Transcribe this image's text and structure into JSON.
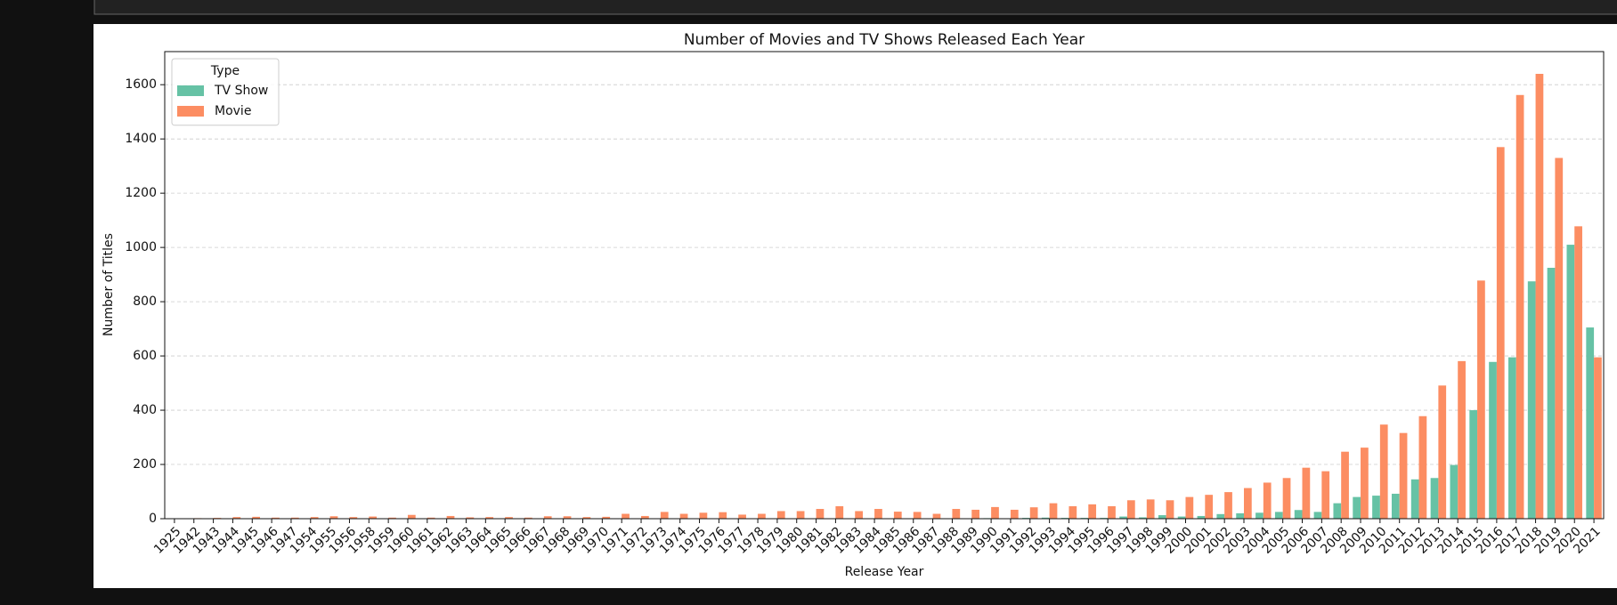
{
  "chart_data": {
    "type": "bar",
    "title": "Number of Movies and TV Shows Released Each Year",
    "xlabel": "Release Year",
    "ylabel": "Number of Titles",
    "legend_title": "Type",
    "legend": "upper left",
    "grid": true,
    "categories": [
      "1925",
      "1942",
      "1943",
      "1944",
      "1945",
      "1946",
      "1947",
      "1954",
      "1955",
      "1956",
      "1958",
      "1959",
      "1960",
      "1961",
      "1962",
      "1963",
      "1964",
      "1965",
      "1966",
      "1967",
      "1968",
      "1969",
      "1970",
      "1971",
      "1972",
      "1973",
      "1974",
      "1975",
      "1976",
      "1977",
      "1978",
      "1979",
      "1980",
      "1981",
      "1982",
      "1983",
      "1984",
      "1985",
      "1986",
      "1987",
      "1988",
      "1989",
      "1990",
      "1991",
      "1992",
      "1993",
      "1994",
      "1995",
      "1996",
      "1997",
      "1998",
      "1999",
      "2000",
      "2001",
      "2002",
      "2003",
      "2004",
      "2005",
      "2006",
      "2007",
      "2008",
      "2009",
      "2010",
      "2011",
      "2012",
      "2013",
      "2014",
      "2015",
      "2016",
      "2017",
      "2018",
      "2019",
      "2020",
      "2021"
    ],
    "series": [
      {
        "name": "TV Show",
        "color": "#66c2a5",
        "values": [
          1,
          0,
          0,
          0,
          1,
          1,
          0,
          0,
          0,
          0,
          0,
          0,
          0,
          0,
          0,
          1,
          0,
          0,
          0,
          0,
          0,
          0,
          0,
          0,
          0,
          0,
          0,
          0,
          0,
          0,
          0,
          0,
          0,
          0,
          0,
          0,
          0,
          0,
          1,
          1,
          1,
          1,
          2,
          1,
          3,
          4,
          3,
          3,
          3,
          8,
          5,
          13,
          8,
          10,
          17,
          20,
          22,
          25,
          32,
          25,
          57,
          80,
          85,
          92,
          145,
          150,
          198,
          400,
          578,
          595,
          875,
          925,
          1010,
          705
        ]
      },
      {
        "name": "Movie",
        "color": "#fc8d62",
        "values": [
          0,
          2,
          3,
          6,
          7,
          4,
          4,
          6,
          9,
          6,
          8,
          4,
          14,
          4,
          10,
          5,
          6,
          6,
          4,
          9,
          9,
          6,
          7,
          18,
          10,
          25,
          18,
          22,
          24,
          15,
          18,
          28,
          28,
          36,
          46,
          28,
          36,
          26,
          25,
          18,
          36,
          33,
          43,
          33,
          42,
          57,
          46,
          53,
          46,
          68,
          71,
          68,
          80,
          88,
          98,
          113,
          133,
          150,
          188,
          175,
          247,
          262,
          347,
          316,
          378,
          491,
          581,
          878,
          1370,
          1562,
          1640,
          1330,
          1078,
          595
        ]
      }
    ],
    "ylim": [
      0,
      1722
    ],
    "yticks": [
      0,
      200,
      400,
      600,
      800,
      1000,
      1200,
      1400,
      1600
    ]
  }
}
